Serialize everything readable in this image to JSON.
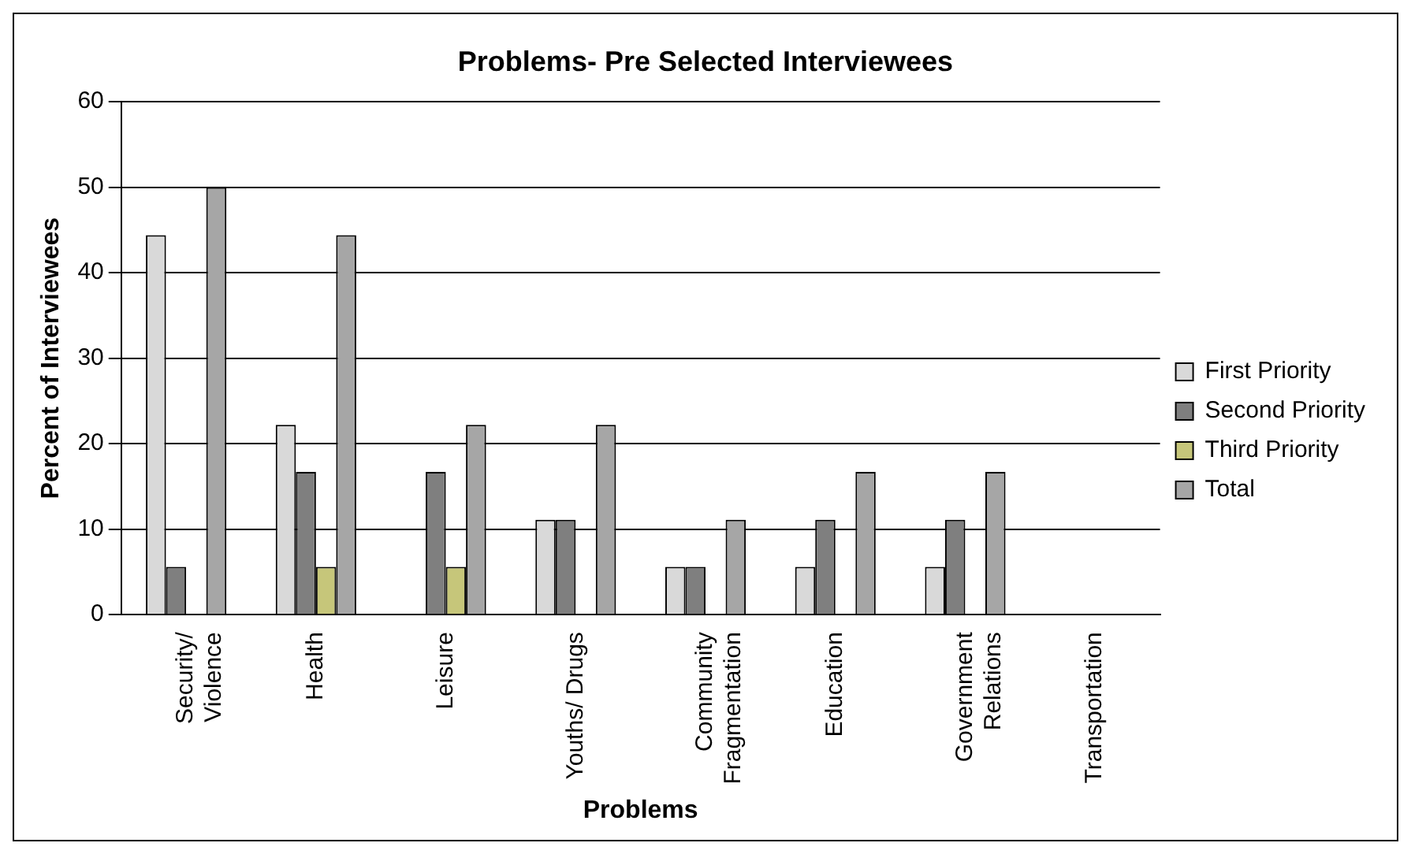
{
  "chart_data": {
    "type": "bar",
    "title": "Problems- Pre Selected Interviewees",
    "xlabel": "Problems",
    "ylabel": "Percent of Interviewees",
    "categories": [
      "Security/\nViolence",
      "Health",
      "Leisure",
      "Youths/ Drugs",
      "Community\nFragmentation",
      "Education",
      "Government\nRelations",
      "Transportation"
    ],
    "series": [
      {
        "name": "First Priority",
        "color": "#d9d9d9",
        "values": [
          44.4,
          22.2,
          0,
          11.1,
          5.6,
          5.6,
          5.6,
          0
        ]
      },
      {
        "name": "Second Priority",
        "color": "#7f7f7f",
        "values": [
          5.6,
          16.7,
          16.7,
          11.1,
          5.6,
          11.1,
          11.1,
          0
        ]
      },
      {
        "name": "Third Priority",
        "color": "#c6c67a",
        "values": [
          0,
          5.6,
          5.6,
          0,
          0,
          0,
          0,
          0
        ]
      },
      {
        "name": "Total",
        "color": "#a6a6a6",
        "values": [
          50,
          44.4,
          22.2,
          22.2,
          11.1,
          16.7,
          16.7,
          0
        ]
      }
    ],
    "ylim": [
      0,
      60
    ],
    "yticks": [
      0,
      10,
      20,
      30,
      40,
      50,
      60
    ],
    "grid": "y",
    "legend": "right"
  }
}
